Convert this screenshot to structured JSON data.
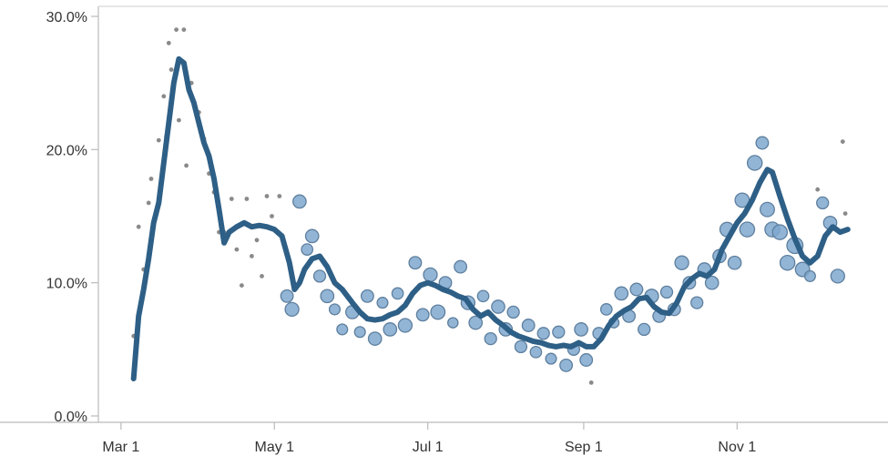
{
  "chart_data": {
    "type": "scatter",
    "title": "",
    "xlabel": "",
    "ylabel": "",
    "x_ticks": [
      "Mar 1",
      "May 1",
      "Jul 1",
      "Sep 1",
      "Nov 1"
    ],
    "x_tick_dates": [
      "2020-03-01",
      "2020-05-01",
      "2020-07-01",
      "2020-09-01",
      "2020-11-01"
    ],
    "xlim": [
      "2020-02-21",
      "2020-12-31"
    ],
    "y_ticks": [
      "0.0%",
      "10.0%",
      "20.0%",
      "30.0%"
    ],
    "y_tick_values": [
      0,
      10,
      20,
      30
    ],
    "ylim": [
      0,
      30
    ],
    "y_unit": "%",
    "grid": false,
    "colors": {
      "trend": "#2e5f86",
      "points_fill": "#7fa8cf",
      "points_stroke": "#5e7f9e",
      "small_points": "#8a8a8a",
      "axis": "#bbbbbb"
    },
    "trend_line": {
      "name": "",
      "points": [
        [
          "2020-03-06",
          2.8
        ],
        [
          "2020-03-08",
          7.5
        ],
        [
          "2020-03-10",
          9.5
        ],
        [
          "2020-03-12",
          11.8
        ],
        [
          "2020-03-14",
          14.5
        ],
        [
          "2020-03-16",
          16.0
        ],
        [
          "2020-03-18",
          19.0
        ],
        [
          "2020-03-20",
          22.0
        ],
        [
          "2020-03-22",
          25.0
        ],
        [
          "2020-03-24",
          26.8
        ],
        [
          "2020-03-26",
          26.5
        ],
        [
          "2020-03-28",
          24.5
        ],
        [
          "2020-03-30",
          23.5
        ],
        [
          "2020-04-01",
          22.0
        ],
        [
          "2020-04-03",
          20.5
        ],
        [
          "2020-04-05",
          19.5
        ],
        [
          "2020-04-07",
          17.8
        ],
        [
          "2020-04-09",
          15.5
        ],
        [
          "2020-04-11",
          13.0
        ],
        [
          "2020-04-13",
          13.8
        ],
        [
          "2020-04-16",
          14.2
        ],
        [
          "2020-04-19",
          14.5
        ],
        [
          "2020-04-22",
          14.2
        ],
        [
          "2020-04-25",
          14.3
        ],
        [
          "2020-04-28",
          14.2
        ],
        [
          "2020-05-01",
          14.0
        ],
        [
          "2020-05-04",
          13.5
        ],
        [
          "2020-05-07",
          11.5
        ],
        [
          "2020-05-09",
          9.5
        ],
        [
          "2020-05-11",
          10.0
        ],
        [
          "2020-05-13",
          11.0
        ],
        [
          "2020-05-16",
          11.8
        ],
        [
          "2020-05-19",
          12.0
        ],
        [
          "2020-05-22",
          11.2
        ],
        [
          "2020-05-25",
          10.0
        ],
        [
          "2020-05-28",
          9.5
        ],
        [
          "2020-06-01",
          8.5
        ],
        [
          "2020-06-04",
          7.8
        ],
        [
          "2020-06-07",
          7.3
        ],
        [
          "2020-06-10",
          7.2
        ],
        [
          "2020-06-13",
          7.3
        ],
        [
          "2020-06-16",
          7.6
        ],
        [
          "2020-06-19",
          7.8
        ],
        [
          "2020-06-22",
          8.3
        ],
        [
          "2020-06-25",
          9.2
        ],
        [
          "2020-06-28",
          9.8
        ],
        [
          "2020-07-01",
          10.0
        ],
        [
          "2020-07-04",
          9.8
        ],
        [
          "2020-07-07",
          9.5
        ],
        [
          "2020-07-10",
          9.3
        ],
        [
          "2020-07-13",
          9.0
        ],
        [
          "2020-07-16",
          8.8
        ],
        [
          "2020-07-19",
          8.0
        ],
        [
          "2020-07-22",
          7.5
        ],
        [
          "2020-07-25",
          7.8
        ],
        [
          "2020-07-28",
          7.2
        ],
        [
          "2020-07-31",
          6.8
        ],
        [
          "2020-08-03",
          6.3
        ],
        [
          "2020-08-06",
          6.0
        ],
        [
          "2020-08-09",
          5.8
        ],
        [
          "2020-08-12",
          5.6
        ],
        [
          "2020-08-15",
          5.5
        ],
        [
          "2020-08-18",
          5.3
        ],
        [
          "2020-08-21",
          5.2
        ],
        [
          "2020-08-24",
          5.3
        ],
        [
          "2020-08-27",
          5.2
        ],
        [
          "2020-08-30",
          5.5
        ],
        [
          "2020-09-02",
          5.2
        ],
        [
          "2020-09-05",
          5.2
        ],
        [
          "2020-09-08",
          5.8
        ],
        [
          "2020-09-11",
          6.8
        ],
        [
          "2020-09-14",
          7.5
        ],
        [
          "2020-09-17",
          7.9
        ],
        [
          "2020-09-20",
          8.2
        ],
        [
          "2020-09-23",
          8.8
        ],
        [
          "2020-09-26",
          8.9
        ],
        [
          "2020-09-29",
          8.2
        ],
        [
          "2020-10-02",
          7.8
        ],
        [
          "2020-10-05",
          7.7
        ],
        [
          "2020-10-08",
          8.5
        ],
        [
          "2020-10-11",
          9.7
        ],
        [
          "2020-10-14",
          10.3
        ],
        [
          "2020-10-17",
          10.7
        ],
        [
          "2020-10-20",
          10.5
        ],
        [
          "2020-10-23",
          11.0
        ],
        [
          "2020-10-26",
          12.5
        ],
        [
          "2020-10-29",
          13.5
        ],
        [
          "2020-11-01",
          14.5
        ],
        [
          "2020-11-04",
          15.2
        ],
        [
          "2020-11-07",
          16.2
        ],
        [
          "2020-11-10",
          17.5
        ],
        [
          "2020-11-13",
          18.5
        ],
        [
          "2020-11-15",
          18.3
        ],
        [
          "2020-11-18",
          16.5
        ],
        [
          "2020-11-21",
          14.8
        ],
        [
          "2020-11-24",
          13.3
        ],
        [
          "2020-11-27",
          12.0
        ],
        [
          "2020-11-30",
          11.5
        ],
        [
          "2020-12-03",
          12.0
        ],
        [
          "2020-12-06",
          13.5
        ],
        [
          "2020-12-09",
          14.2
        ],
        [
          "2020-12-12",
          13.8
        ],
        [
          "2020-12-15",
          14.0
        ]
      ]
    },
    "observations": [
      [
        "2020-03-06",
        6.0,
        0.5
      ],
      [
        "2020-03-08",
        14.2,
        0.5
      ],
      [
        "2020-03-10",
        11.0,
        0.5
      ],
      [
        "2020-03-12",
        16.0,
        0.5
      ],
      [
        "2020-03-13",
        17.8,
        0.5
      ],
      [
        "2020-03-16",
        20.7,
        0.5
      ],
      [
        "2020-03-18",
        24.0,
        0.5
      ],
      [
        "2020-03-19",
        21.0,
        0.5
      ],
      [
        "2020-03-20",
        28.0,
        0.5
      ],
      [
        "2020-03-21",
        26.0,
        0.5
      ],
      [
        "2020-03-23",
        29.0,
        0.5
      ],
      [
        "2020-03-24",
        22.2,
        0.5
      ],
      [
        "2020-03-26",
        29.0,
        0.5
      ],
      [
        "2020-03-27",
        18.8,
        0.5
      ],
      [
        "2020-03-29",
        25.0,
        0.5
      ],
      [
        "2020-04-01",
        22.8,
        0.5
      ],
      [
        "2020-04-03",
        20.8,
        0.5
      ],
      [
        "2020-04-05",
        18.2,
        0.5
      ],
      [
        "2020-04-07",
        16.8,
        0.5
      ],
      [
        "2020-04-09",
        13.8,
        0.5
      ],
      [
        "2020-04-11",
        13.8,
        0.5
      ],
      [
        "2020-04-14",
        16.3,
        0.5
      ],
      [
        "2020-04-16",
        12.5,
        0.5
      ],
      [
        "2020-04-18",
        9.8,
        0.5
      ],
      [
        "2020-04-20",
        16.3,
        0.5
      ],
      [
        "2020-04-22",
        12.0,
        0.5
      ],
      [
        "2020-04-24",
        13.2,
        0.5
      ],
      [
        "2020-04-26",
        10.5,
        0.5
      ],
      [
        "2020-04-28",
        16.5,
        0.5
      ],
      [
        "2020-04-30",
        15.0,
        0.5
      ],
      [
        "2020-05-03",
        16.5,
        0.5
      ],
      [
        "2020-05-06",
        9.0,
        1.2
      ],
      [
        "2020-05-08",
        8.0,
        1.4
      ],
      [
        "2020-05-11",
        16.1,
        1.3
      ],
      [
        "2020-05-14",
        12.5,
        1.0
      ],
      [
        "2020-05-16",
        13.5,
        1.3
      ],
      [
        "2020-05-19",
        10.5,
        1.1
      ],
      [
        "2020-05-22",
        9.0,
        1.3
      ],
      [
        "2020-05-25",
        8.0,
        0.9
      ],
      [
        "2020-05-28",
        6.5,
        0.9
      ],
      [
        "2020-06-01",
        7.8,
        1.3
      ],
      [
        "2020-06-04",
        6.3,
        0.9
      ],
      [
        "2020-06-07",
        9.0,
        1.2
      ],
      [
        "2020-06-10",
        5.8,
        1.3
      ],
      [
        "2020-06-13",
        8.5,
        0.9
      ],
      [
        "2020-06-16",
        6.5,
        1.3
      ],
      [
        "2020-06-19",
        9.2,
        1.0
      ],
      [
        "2020-06-22",
        6.8,
        1.4
      ],
      [
        "2020-06-26",
        11.5,
        1.2
      ],
      [
        "2020-06-29",
        7.6,
        1.2
      ],
      [
        "2020-07-02",
        10.6,
        1.4
      ],
      [
        "2020-07-05",
        7.8,
        1.5
      ],
      [
        "2020-07-08",
        10.0,
        1.2
      ],
      [
        "2020-07-11",
        7.0,
        0.8
      ],
      [
        "2020-07-14",
        11.2,
        1.2
      ],
      [
        "2020-07-17",
        8.5,
        1.4
      ],
      [
        "2020-07-20",
        7.0,
        1.3
      ],
      [
        "2020-07-23",
        9.0,
        1.0
      ],
      [
        "2020-07-26",
        5.8,
        1.1
      ],
      [
        "2020-07-29",
        8.2,
        1.3
      ],
      [
        "2020-08-01",
        6.5,
        1.3
      ],
      [
        "2020-08-04",
        7.8,
        1.1
      ],
      [
        "2020-08-07",
        5.2,
        1.1
      ],
      [
        "2020-08-10",
        6.8,
        1.2
      ],
      [
        "2020-08-13",
        4.8,
        1.0
      ],
      [
        "2020-08-16",
        6.2,
        1.1
      ],
      [
        "2020-08-19",
        4.3,
        0.9
      ],
      [
        "2020-08-22",
        6.3,
        1.1
      ],
      [
        "2020-08-25",
        3.8,
        1.2
      ],
      [
        "2020-08-28",
        5.0,
        1.1
      ],
      [
        "2020-08-31",
        6.5,
        1.3
      ],
      [
        "2020-09-02",
        4.2,
        1.2
      ],
      [
        "2020-09-04",
        2.5,
        0.6
      ],
      [
        "2020-09-07",
        6.2,
        1.1
      ],
      [
        "2020-09-10",
        8.0,
        1.0
      ],
      [
        "2020-09-13",
        7.0,
        0.8
      ],
      [
        "2020-09-16",
        9.2,
        1.3
      ],
      [
        "2020-09-19",
        7.5,
        1.2
      ],
      [
        "2020-09-22",
        9.5,
        1.2
      ],
      [
        "2020-09-25",
        6.5,
        1.1
      ],
      [
        "2020-09-28",
        9.0,
        1.4
      ],
      [
        "2020-10-01",
        7.5,
        1.2
      ],
      [
        "2020-10-04",
        9.3,
        1.1
      ],
      [
        "2020-10-07",
        8.0,
        1.2
      ],
      [
        "2020-10-10",
        11.5,
        1.4
      ],
      [
        "2020-10-13",
        10.0,
        1.2
      ],
      [
        "2020-10-16",
        8.5,
        1.1
      ],
      [
        "2020-10-19",
        11.0,
        1.3
      ],
      [
        "2020-10-22",
        10.0,
        1.3
      ],
      [
        "2020-10-25",
        12.0,
        1.3
      ],
      [
        "2020-10-28",
        14.0,
        1.5
      ],
      [
        "2020-10-31",
        11.5,
        1.3
      ],
      [
        "2020-11-03",
        16.2,
        1.5
      ],
      [
        "2020-11-05",
        14.0,
        1.6
      ],
      [
        "2020-11-08",
        19.0,
        1.6
      ],
      [
        "2020-11-11",
        20.5,
        1.2
      ],
      [
        "2020-11-13",
        15.5,
        1.5
      ],
      [
        "2020-11-15",
        14.0,
        1.6
      ],
      [
        "2020-11-18",
        13.8,
        1.6
      ],
      [
        "2020-11-21",
        11.5,
        1.6
      ],
      [
        "2020-11-24",
        12.8,
        1.8
      ],
      [
        "2020-11-27",
        11.0,
        1.5
      ],
      [
        "2020-11-30",
        10.5,
        0.9
      ],
      [
        "2020-12-03",
        17.0,
        0.7
      ],
      [
        "2020-12-05",
        16.0,
        1.1
      ],
      [
        "2020-12-08",
        14.5,
        1.3
      ],
      [
        "2020-12-11",
        10.5,
        1.4
      ],
      [
        "2020-12-13",
        20.6,
        0.7
      ],
      [
        "2020-12-14",
        15.2,
        0.6
      ]
    ]
  }
}
